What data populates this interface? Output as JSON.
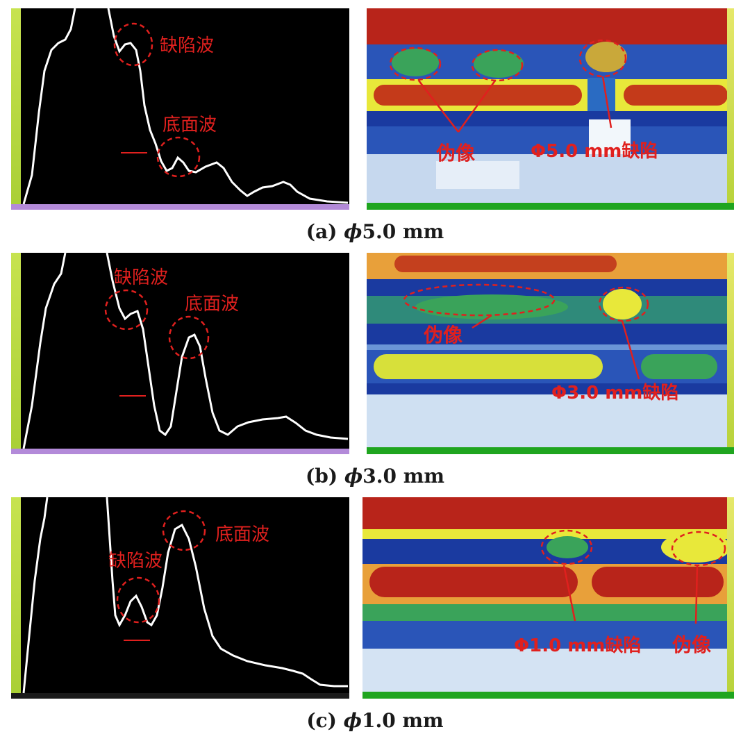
{
  "rows": [
    {
      "caption_prefix": "(a) ",
      "caption_phi": "ϕ",
      "caption_value": "5.0 mm",
      "ascan_labels": {
        "defect_echo": "缺陷波",
        "bottom_echo": "底面波"
      },
      "bscan_labels": {
        "artifact": "伪像",
        "defect": "Φ5.0 mm缺陷"
      }
    },
    {
      "caption_prefix": "(b) ",
      "caption_phi": "ϕ",
      "caption_value": "3.0 mm",
      "ascan_labels": {
        "defect_echo": "缺陷波",
        "bottom_echo": "底面波"
      },
      "bscan_labels": {
        "artifact": "伪像",
        "defect": "Φ3.0 mm缺陷"
      }
    },
    {
      "caption_prefix": "(c) ",
      "caption_phi": "ϕ",
      "caption_value": "1.0 mm",
      "ascan_labels": {
        "defect_echo": "缺陷波",
        "bottom_echo": "底面波"
      },
      "bscan_labels": {
        "artifact": "伪像",
        "defect": "Φ1.0 mm缺陷"
      }
    }
  ],
  "colors": {
    "annotation": "#e0201e",
    "waveform": "#ffffff",
    "ascan_bg": "#000000",
    "bscan_red": "#b8241a",
    "bscan_yellow": "#e8e83a",
    "bscan_green": "#3aa35a",
    "bscan_blue": "#1a3aa0"
  }
}
